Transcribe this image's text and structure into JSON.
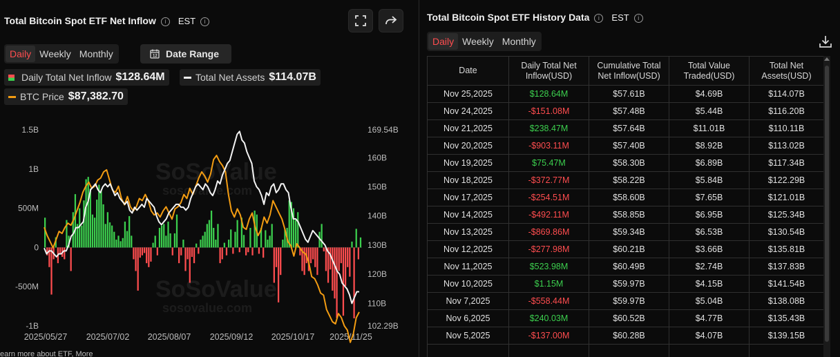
{
  "left": {
    "title": "Total Bitcoin Spot ETF Net Inflow",
    "timezone": "EST",
    "tabs": [
      {
        "label": "Daily",
        "active": true
      },
      {
        "label": "Weekly",
        "active": false
      },
      {
        "label": "Monthly",
        "active": false
      }
    ],
    "date_range_label": "Date Range",
    "legend": {
      "inflow_label": "Daily Total Net Inflow",
      "inflow_value": "$128.64M",
      "assets_label": "Total Net Assets",
      "assets_value": "$114.07B",
      "btc_label": "BTC Price",
      "btc_value": "$87,382.70"
    },
    "footer": "earn more about ETF, More"
  },
  "chart_data": {
    "type": "bar",
    "watermark": "SoSoValue",
    "watermark_sub": "sosovalue.com",
    "x_ticks": [
      "2025/05/27",
      "2025/07/02",
      "2025/08/07",
      "2025/09/12",
      "2025/10/17",
      "2025/11/25"
    ],
    "y_left_ticks": [
      "1.5B",
      "1B",
      "500M",
      "0",
      "-500M",
      "-1B"
    ],
    "y_left_range": [
      -1000,
      1500
    ],
    "y_right_ticks": [
      "169.54B",
      "160B",
      "150B",
      "140B",
      "130B",
      "120B",
      "110B",
      "102.29B"
    ],
    "y_right_range": [
      102.29,
      169.54
    ],
    "colors": {
      "positive": "#3ccf4e",
      "negative": "#ff4d4f",
      "assets": "#f2f2f2",
      "btc": "#f39c12"
    },
    "series": [
      {
        "name": "Daily Total Net Inflow",
        "unit": "M USD",
        "values": [
          380,
          -100,
          -250,
          -600,
          -150,
          130,
          -200,
          -90,
          -120,
          -150,
          350,
          150,
          -300,
          450,
          680,
          300,
          500,
          280,
          600,
          870,
          900,
          750,
          420,
          380,
          610,
          800,
          720,
          550,
          300,
          450,
          320,
          280,
          200,
          100,
          150,
          80,
          120,
          330,
          210,
          400,
          150,
          -150,
          -300,
          -550,
          -130,
          -100,
          -70,
          -200,
          -250,
          -180,
          60,
          150,
          -100,
          250,
          280,
          300,
          150,
          330,
          180,
          -100,
          180,
          420,
          -200,
          -100,
          100,
          -300,
          -150,
          -450,
          -120,
          -200,
          50,
          -80,
          100,
          150,
          200,
          300,
          350,
          470,
          250,
          100,
          300,
          -200,
          -150,
          60,
          -100,
          100,
          230,
          -80,
          200,
          350,
          -60,
          380,
          160,
          -100,
          -60,
          250,
          -100,
          470,
          420,
          -80,
          250,
          -130,
          220,
          100,
          150,
          300,
          -450,
          -250,
          -700,
          -350,
          100,
          230,
          250,
          600,
          580,
          500,
          350,
          450,
          -100,
          -300,
          -350,
          -200,
          -300,
          -200,
          -150,
          -250,
          -350,
          200,
          300,
          -50,
          -300,
          -450,
          -280,
          -550,
          -650,
          -900,
          -300,
          -200,
          -870,
          -490,
          -250,
          -372,
          75,
          -903,
          238,
          -151,
          128
        ]
      },
      {
        "name": "Total Net Assets",
        "unit": "B USD",
        "values": [
          129,
          127,
          128,
          128,
          127,
          126,
          127,
          127,
          128,
          128,
          130,
          133,
          134,
          136,
          136,
          137,
          138,
          143,
          145,
          149,
          150,
          151,
          149,
          148,
          150,
          151,
          150,
          151,
          149,
          147,
          148,
          146,
          145,
          144,
          145,
          142,
          141,
          143,
          142,
          143,
          144,
          143,
          146,
          145,
          144,
          143,
          140,
          138,
          137,
          138,
          139,
          141,
          142,
          143,
          144,
          144,
          143,
          143,
          142,
          143,
          146,
          148,
          150,
          151,
          150,
          149,
          151,
          150,
          148,
          147,
          149,
          152,
          151,
          154,
          156,
          158,
          159,
          162,
          165,
          168,
          169,
          166,
          165,
          162,
          160,
          158,
          152,
          150,
          149,
          147,
          144,
          148,
          147,
          150,
          151,
          148,
          149,
          151,
          151,
          149,
          148,
          143,
          139,
          139,
          138,
          136,
          134,
          132,
          131,
          133,
          135,
          134,
          133,
          132,
          131,
          130,
          128,
          127,
          125,
          123,
          121,
          120,
          117,
          116,
          115,
          113,
          110,
          112,
          114,
          114
        ]
      },
      {
        "name": "BTC Price",
        "unit": "USD",
        "values": [
          108000,
          106000,
          104500,
          103000,
          105000,
          107000,
          106500,
          108000,
          109000,
          108500,
          110000,
          112000,
          114000,
          116500,
          118000,
          119000,
          117500,
          118000,
          119500,
          120000,
          121500,
          122000,
          119500,
          117000,
          116500,
          118000,
          115000,
          113500,
          115500,
          113000,
          112000,
          113000,
          115000,
          114500,
          116000,
          114500,
          112000,
          111000,
          111500,
          110500,
          112000,
          113000,
          111500,
          110000,
          112500,
          113000,
          114000,
          116000,
          115000,
          117500,
          116000,
          118000,
          120000,
          121500,
          120500,
          119000,
          121000,
          124500,
          125500,
          124000,
          123000,
          121500,
          116000,
          112000,
          110500,
          112500,
          111000,
          108000,
          107500,
          110000,
          111500,
          108000,
          106000,
          107500,
          110500,
          109000,
          111000,
          114500,
          113000,
          111500,
          110000,
          107500,
          104500,
          103500,
          101000,
          104000,
          103000,
          102000,
          101500,
          99500,
          96000,
          95500,
          94000,
          92000,
          91500,
          88000,
          86500,
          85000,
          84500,
          87000,
          86000,
          84000,
          83000,
          80000,
          82000,
          86000,
          87380
        ]
      }
    ]
  },
  "right": {
    "title": "Total Bitcoin Spot ETF History Data",
    "timezone": "EST",
    "tabs": [
      {
        "label": "Daily",
        "active": true
      },
      {
        "label": "Weekly",
        "active": false
      },
      {
        "label": "Monthly",
        "active": false
      }
    ],
    "columns": [
      "Date",
      "Daily Total Net Inflow(USD)",
      "Cumulative Total Net Inflow(USD)",
      "Total Value Traded(USD)",
      "Total Net Assets(USD)"
    ],
    "rows": [
      {
        "date": "Nov 25,2025",
        "inflow": "$128.64M",
        "sign": "pos",
        "cumulative": "$57.61B",
        "traded": "$4.69B",
        "assets": "$114.07B"
      },
      {
        "date": "Nov 24,2025",
        "inflow": "-$151.08M",
        "sign": "neg",
        "cumulative": "$57.48B",
        "traded": "$5.44B",
        "assets": "$116.20B"
      },
      {
        "date": "Nov 21,2025",
        "inflow": "$238.47M",
        "sign": "pos",
        "cumulative": "$57.64B",
        "traded": "$11.01B",
        "assets": "$110.11B"
      },
      {
        "date": "Nov 20,2025",
        "inflow": "-$903.11M",
        "sign": "neg",
        "cumulative": "$57.40B",
        "traded": "$8.92B",
        "assets": "$113.02B"
      },
      {
        "date": "Nov 19,2025",
        "inflow": "$75.47M",
        "sign": "pos",
        "cumulative": "$58.30B",
        "traded": "$6.89B",
        "assets": "$117.34B"
      },
      {
        "date": "Nov 18,2025",
        "inflow": "-$372.77M",
        "sign": "neg",
        "cumulative": "$58.22B",
        "traded": "$5.84B",
        "assets": "$122.29B"
      },
      {
        "date": "Nov 17,2025",
        "inflow": "-$254.51M",
        "sign": "neg",
        "cumulative": "$58.60B",
        "traded": "$7.65B",
        "assets": "$121.01B"
      },
      {
        "date": "Nov 14,2025",
        "inflow": "-$492.11M",
        "sign": "neg",
        "cumulative": "$58.85B",
        "traded": "$6.95B",
        "assets": "$125.34B"
      },
      {
        "date": "Nov 13,2025",
        "inflow": "-$869.86M",
        "sign": "neg",
        "cumulative": "$59.34B",
        "traded": "$6.53B",
        "assets": "$130.54B"
      },
      {
        "date": "Nov 12,2025",
        "inflow": "-$277.98M",
        "sign": "neg",
        "cumulative": "$60.21B",
        "traded": "$3.66B",
        "assets": "$135.81B"
      },
      {
        "date": "Nov 11,2025",
        "inflow": "$523.98M",
        "sign": "pos",
        "cumulative": "$60.49B",
        "traded": "$2.74B",
        "assets": "$137.83B"
      },
      {
        "date": "Nov 10,2025",
        "inflow": "$1.15M",
        "sign": "pos",
        "cumulative": "$59.97B",
        "traded": "$4.15B",
        "assets": "$141.54B"
      },
      {
        "date": "Nov 7,2025",
        "inflow": "-$558.44M",
        "sign": "neg",
        "cumulative": "$59.97B",
        "traded": "$5.04B",
        "assets": "$138.08B"
      },
      {
        "date": "Nov 6,2025",
        "inflow": "$240.03M",
        "sign": "pos",
        "cumulative": "$60.52B",
        "traded": "$4.77B",
        "assets": "$135.43B"
      },
      {
        "date": "Nov 5,2025",
        "inflow": "-$137.00M",
        "sign": "neg",
        "cumulative": "$60.28B",
        "traded": "$4.07B",
        "assets": "$139.15B"
      },
      {
        "date": "",
        "inflow": "",
        "sign": "neg",
        "cumulative": "",
        "traded": "",
        "assets": ""
      }
    ]
  }
}
